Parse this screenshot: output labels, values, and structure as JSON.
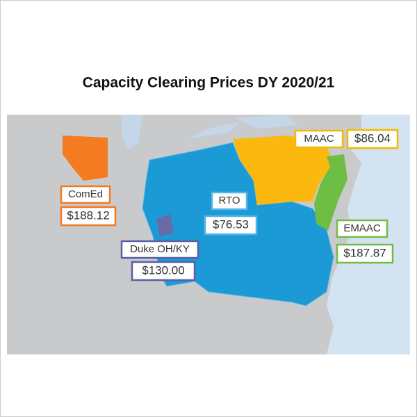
{
  "title": "Capacity Clearing Prices DY 2020/21",
  "regions": [
    {
      "name": "MAAC",
      "price": "$86.04"
    },
    {
      "name": "ComEd",
      "price": "$188.12"
    },
    {
      "name": "RTO",
      "price": "$76.53"
    },
    {
      "name": "EMAAC",
      "price": "$187.87"
    },
    {
      "name": "Duke OH/KY",
      "price": "$130.00"
    }
  ]
}
